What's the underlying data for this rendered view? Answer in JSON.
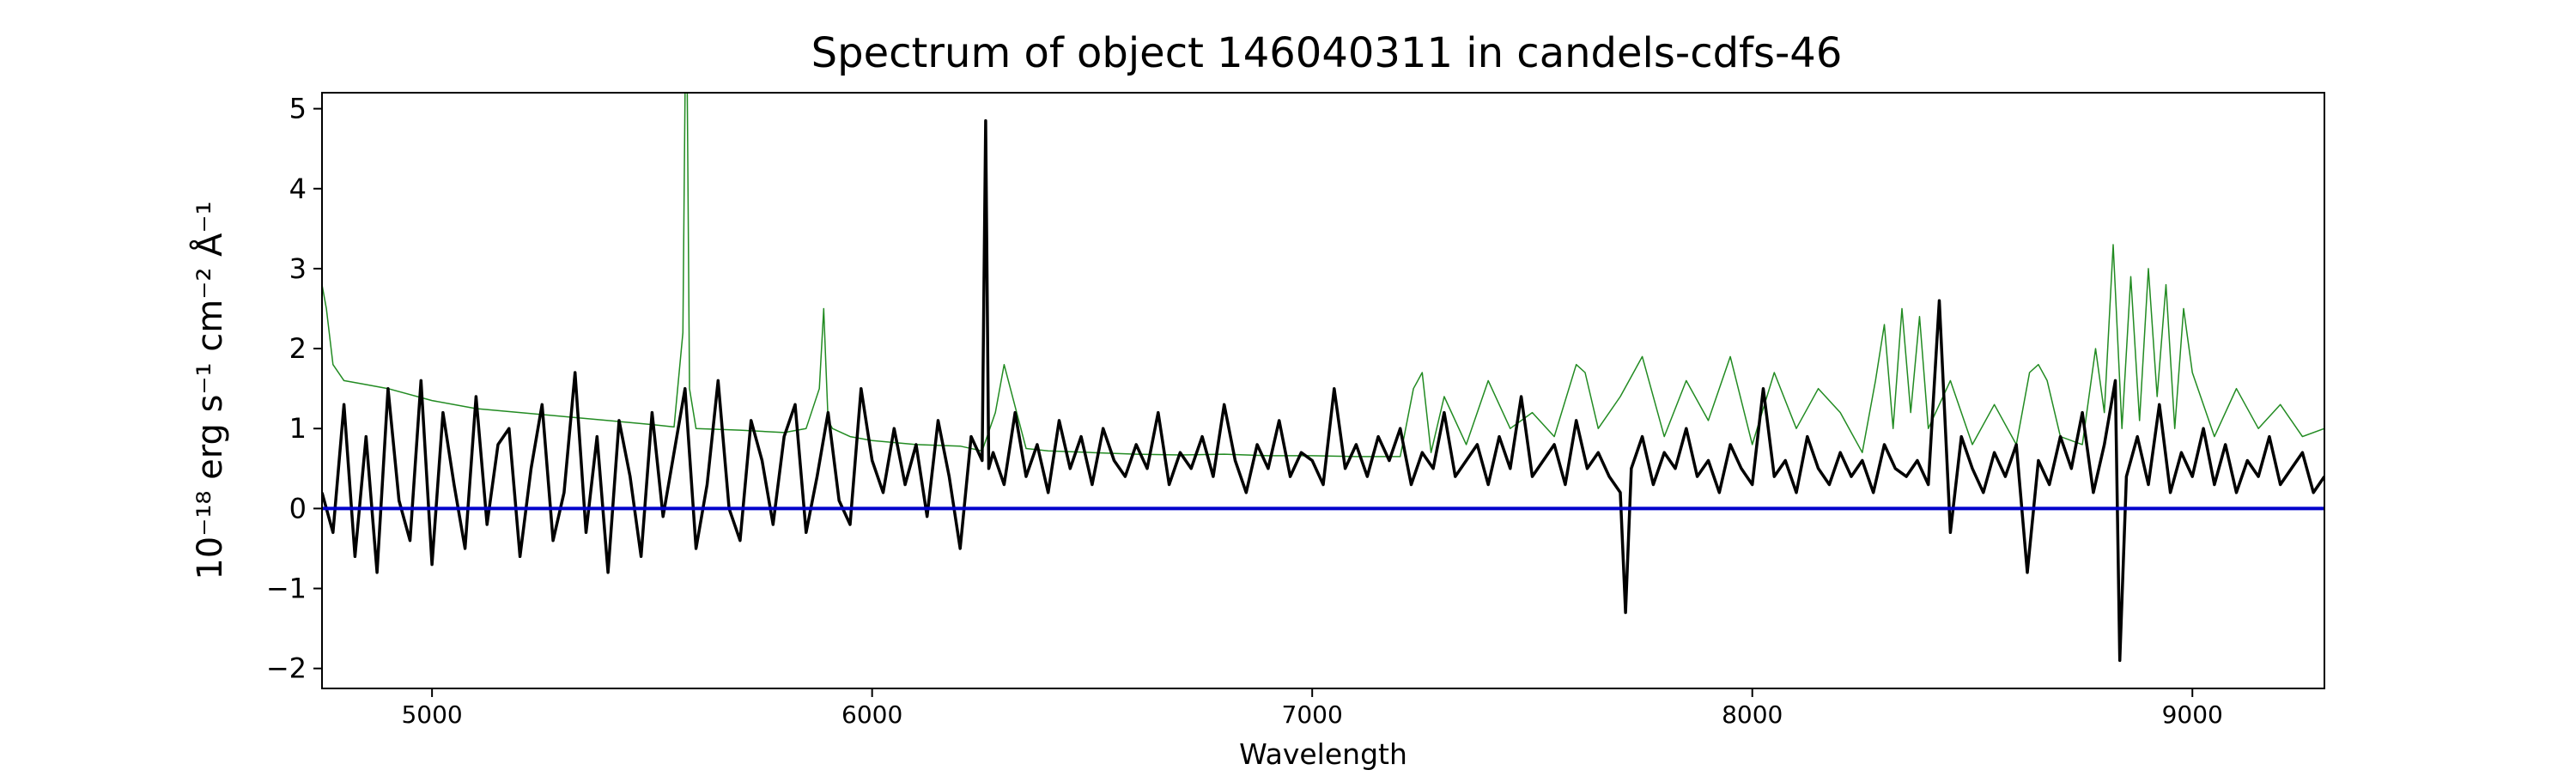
{
  "chart_data": {
    "type": "line",
    "title": "Spectrum of object 146040311 in candels-cdfs-46",
    "xlabel": "Wavelength",
    "ylabel": "10⁻¹⁸ erg s⁻¹ cm⁻² Å⁻¹",
    "xlim": [
      4750,
      9300
    ],
    "ylim": [
      -2.25,
      5.2
    ],
    "x_ticks": [
      5000,
      6000,
      7000,
      8000,
      9000
    ],
    "y_ticks": [
      -2,
      -1,
      0,
      1,
      2,
      3,
      4,
      5
    ],
    "grid": false,
    "legend": "none",
    "series": [
      {
        "color": "#000000",
        "description": "observed flux (black)",
        "x": [
          4750,
          4775,
          4800,
          4825,
          4850,
          4875,
          4900,
          4925,
          4950,
          4975,
          5000,
          5025,
          5050,
          5075,
          5100,
          5125,
          5150,
          5175,
          5200,
          5225,
          5250,
          5275,
          5300,
          5325,
          5350,
          5375,
          5400,
          5425,
          5450,
          5475,
          5500,
          5525,
          5550,
          5575,
          5600,
          5625,
          5650,
          5675,
          5700,
          5725,
          5750,
          5775,
          5800,
          5825,
          5850,
          5875,
          5900,
          5925,
          5950,
          5975,
          6000,
          6025,
          6050,
          6075,
          6100,
          6125,
          6150,
          6175,
          6200,
          6225,
          6250,
          6258,
          6265,
          6275,
          6300,
          6325,
          6350,
          6375,
          6400,
          6425,
          6450,
          6475,
          6500,
          6525,
          6550,
          6575,
          6600,
          6625,
          6650,
          6675,
          6700,
          6725,
          6750,
          6775,
          6800,
          6825,
          6850,
          6875,
          6900,
          6925,
          6950,
          6975,
          7000,
          7025,
          7050,
          7075,
          7100,
          7125,
          7150,
          7175,
          7200,
          7225,
          7250,
          7275,
          7300,
          7325,
          7350,
          7375,
          7400,
          7425,
          7450,
          7475,
          7500,
          7525,
          7550,
          7575,
          7600,
          7625,
          7650,
          7675,
          7700,
          7712,
          7725,
          7750,
          7775,
          7800,
          7825,
          7850,
          7875,
          7900,
          7925,
          7950,
          7975,
          8000,
          8025,
          8050,
          8075,
          8100,
          8125,
          8150,
          8175,
          8200,
          8225,
          8250,
          8275,
          8300,
          8325,
          8350,
          8375,
          8400,
          8425,
          8450,
          8475,
          8500,
          8525,
          8550,
          8575,
          8600,
          8625,
          8650,
          8675,
          8700,
          8725,
          8750,
          8775,
          8800,
          8825,
          8835,
          8850,
          8875,
          8900,
          8925,
          8950,
          8975,
          9000,
          9025,
          9050,
          9075,
          9100,
          9125,
          9150,
          9175,
          9200,
          9225,
          9250,
          9275,
          9300
        ],
        "y": [
          0.2,
          -0.3,
          1.3,
          -0.6,
          0.9,
          -0.8,
          1.5,
          0.1,
          -0.4,
          1.6,
          -0.7,
          1.2,
          0.3,
          -0.5,
          1.4,
          -0.2,
          0.8,
          1.0,
          -0.6,
          0.5,
          1.3,
          -0.4,
          0.2,
          1.7,
          -0.3,
          0.9,
          -0.8,
          1.1,
          0.4,
          -0.6,
          1.2,
          -0.1,
          0.7,
          1.5,
          -0.5,
          0.3,
          1.6,
          0.0,
          -0.4,
          1.1,
          0.6,
          -0.2,
          0.9,
          1.3,
          -0.3,
          0.4,
          1.2,
          0.1,
          -0.2,
          1.5,
          0.6,
          0.2,
          1.0,
          0.3,
          0.8,
          -0.1,
          1.1,
          0.4,
          -0.5,
          0.9,
          0.6,
          4.85,
          0.5,
          0.7,
          0.3,
          1.2,
          0.4,
          0.8,
          0.2,
          1.1,
          0.5,
          0.9,
          0.3,
          1.0,
          0.6,
          0.4,
          0.8,
          0.5,
          1.2,
          0.3,
          0.7,
          0.5,
          0.9,
          0.4,
          1.3,
          0.6,
          0.2,
          0.8,
          0.5,
          1.1,
          0.4,
          0.7,
          0.6,
          0.3,
          1.5,
          0.5,
          0.8,
          0.4,
          0.9,
          0.6,
          1.0,
          0.3,
          0.7,
          0.5,
          1.2,
          0.4,
          0.6,
          0.8,
          0.3,
          0.9,
          0.5,
          1.4,
          0.4,
          0.6,
          0.8,
          0.3,
          1.1,
          0.5,
          0.7,
          0.4,
          0.2,
          -1.3,
          0.5,
          0.9,
          0.3,
          0.7,
          0.5,
          1.0,
          0.4,
          0.6,
          0.2,
          0.8,
          0.5,
          0.3,
          1.5,
          0.4,
          0.6,
          0.2,
          0.9,
          0.5,
          0.3,
          0.7,
          0.4,
          0.6,
          0.2,
          0.8,
          0.5,
          0.4,
          0.6,
          0.3,
          2.6,
          -0.3,
          0.9,
          0.5,
          0.2,
          0.7,
          0.4,
          0.8,
          -0.8,
          0.6,
          0.3,
          0.9,
          0.5,
          1.2,
          0.2,
          0.8,
          1.6,
          -1.9,
          0.4,
          0.9,
          0.3,
          1.3,
          0.2,
          0.7,
          0.4,
          1.0,
          0.3,
          0.8,
          0.2,
          0.6,
          0.4,
          0.9,
          0.3,
          0.5,
          0.7,
          0.2,
          0.4
        ]
      },
      {
        "color": "#228B22",
        "description": "noise / error spectrum (green)",
        "x": [
          4750,
          4760,
          4775,
          4800,
          4850,
          4900,
          5000,
          5100,
          5200,
          5300,
          5400,
          5500,
          5550,
          5570,
          5575,
          5580,
          5585,
          5600,
          5700,
          5800,
          5850,
          5880,
          5890,
          5895,
          5900,
          5910,
          5950,
          6000,
          6100,
          6200,
          6250,
          6280,
          6300,
          6350,
          6400,
          6500,
          6600,
          6700,
          6800,
          6900,
          7000,
          7100,
          7200,
          7230,
          7250,
          7270,
          7300,
          7350,
          7400,
          7450,
          7500,
          7550,
          7600,
          7620,
          7650,
          7700,
          7750,
          7800,
          7850,
          7900,
          7950,
          8000,
          8050,
          8100,
          8150,
          8200,
          8250,
          8280,
          8300,
          8320,
          8340,
          8360,
          8380,
          8400,
          8450,
          8500,
          8550,
          8600,
          8630,
          8650,
          8670,
          8700,
          8750,
          8780,
          8800,
          8820,
          8840,
          8860,
          8880,
          8900,
          8920,
          8940,
          8960,
          8980,
          9000,
          9050,
          9100,
          9150,
          9200,
          9250,
          9300
        ],
        "y": [
          2.8,
          2.5,
          1.8,
          1.6,
          1.55,
          1.5,
          1.35,
          1.25,
          1.2,
          1.15,
          1.1,
          1.05,
          1.02,
          2.2,
          5.2,
          5.2,
          1.5,
          1.0,
          0.98,
          0.95,
          1.0,
          1.5,
          2.5,
          1.8,
          1.1,
          1.0,
          0.9,
          0.85,
          0.8,
          0.78,
          0.72,
          1.2,
          1.8,
          0.75,
          0.72,
          0.7,
          0.68,
          0.67,
          0.68,
          0.66,
          0.66,
          0.65,
          0.65,
          1.5,
          1.7,
          0.7,
          1.4,
          0.8,
          1.6,
          1.0,
          1.2,
          0.9,
          1.8,
          1.7,
          1.0,
          1.4,
          1.9,
          0.9,
          1.6,
          1.1,
          1.9,
          0.8,
          1.7,
          1.0,
          1.5,
          1.2,
          0.7,
          1.6,
          2.3,
          1.0,
          2.5,
          1.2,
          2.4,
          1.0,
          1.6,
          0.8,
          1.3,
          0.8,
          1.7,
          1.8,
          1.6,
          0.9,
          0.8,
          2.0,
          1.2,
          3.3,
          1.0,
          2.9,
          1.1,
          3.0,
          1.4,
          2.8,
          1.0,
          2.5,
          1.7,
          0.9,
          1.5,
          1.0,
          1.3,
          0.9,
          1.0
        ]
      },
      {
        "color": "#0000CC",
        "description": "zero level (blue)",
        "x": [
          4750,
          9300
        ],
        "y": [
          0,
          0
        ]
      }
    ]
  }
}
